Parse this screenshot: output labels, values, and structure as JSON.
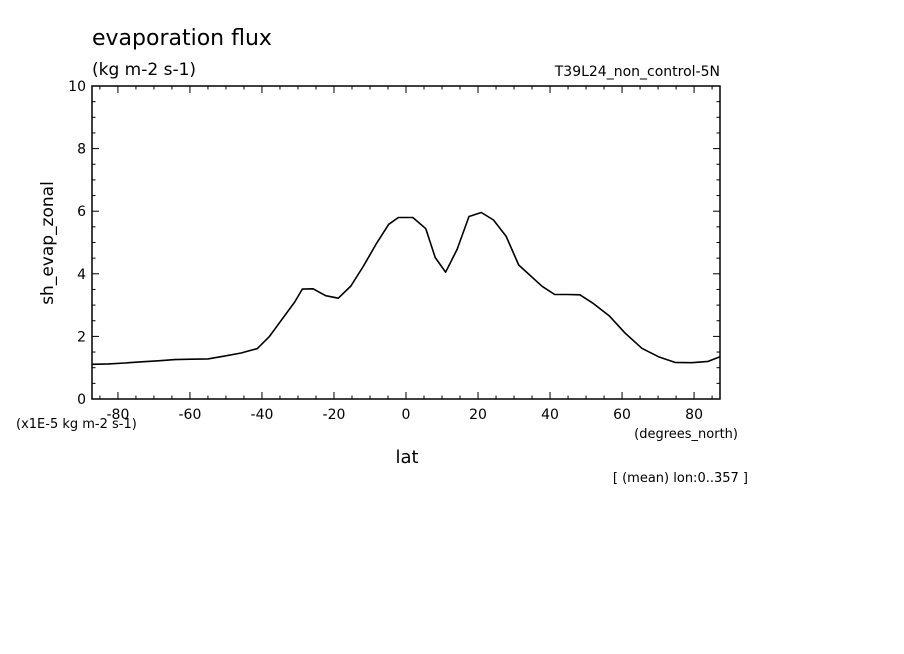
{
  "header": {
    "title": "evaporation flux",
    "units": "(kg m-2 s-1)",
    "experiment": "T39L24_non_control-5N"
  },
  "footer": {
    "scale_note": "(x1E-5 kg m-2 s-1)",
    "x_units": "(degrees_north)",
    "averaging_note": "[ (mean) lon:0..357 ]"
  },
  "chart_data": {
    "type": "line",
    "title": "evaporation flux",
    "subtitle": "(kg m-2 s-1)",
    "xlabel": "lat",
    "ylabel": "sh_evap_zonal",
    "xlim": [
      -87.2,
      87.2
    ],
    "ylim": [
      0,
      10
    ],
    "x_ticks": [
      -80,
      -60,
      -40,
      -20,
      0,
      20,
      40,
      60,
      80
    ],
    "y_ticks": [
      0,
      2,
      4,
      6,
      8,
      10
    ],
    "x_tick_labels": [
      "-80",
      "-60",
      "-40",
      "-20",
      "0",
      "20",
      "40",
      "60",
      "80"
    ],
    "y_tick_labels": [
      "0",
      "2",
      "4",
      "6",
      "8",
      "10"
    ],
    "grid": false,
    "series": [
      {
        "x": [
          -87.2,
          -82.6,
          -78.0,
          -73.4,
          -68.8,
          -64.2,
          -59.6,
          -55.0,
          -50.4,
          -45.8,
          -41.3,
          -37.9,
          -34.4,
          -30.9,
          -28.8,
          -25.8,
          -22.3,
          -18.8,
          -15.3,
          -11.8,
          -8.3,
          -4.8,
          -2.1,
          1.9,
          5.5,
          8.1,
          11.0,
          14.2,
          17.5,
          20.9,
          24.3,
          27.8,
          31.3,
          37.8,
          41.3,
          44.8,
          48.3,
          51.8,
          56.4,
          60.9,
          65.5,
          70.1,
          74.7,
          79.3,
          83.9,
          87.2
        ],
        "y": [
          1.11,
          1.12,
          1.15,
          1.19,
          1.22,
          1.26,
          1.27,
          1.28,
          1.37,
          1.47,
          1.61,
          2.0,
          2.55,
          3.1,
          3.51,
          3.52,
          3.3,
          3.22,
          3.61,
          4.25,
          4.95,
          5.58,
          5.8,
          5.8,
          5.44,
          4.52,
          4.05,
          4.78,
          5.83,
          5.96,
          5.72,
          5.2,
          4.28,
          3.6,
          3.34,
          3.34,
          3.33,
          3.07,
          2.66,
          2.1,
          1.62,
          1.35,
          1.17,
          1.16,
          1.2,
          1.35
        ]
      }
    ]
  }
}
